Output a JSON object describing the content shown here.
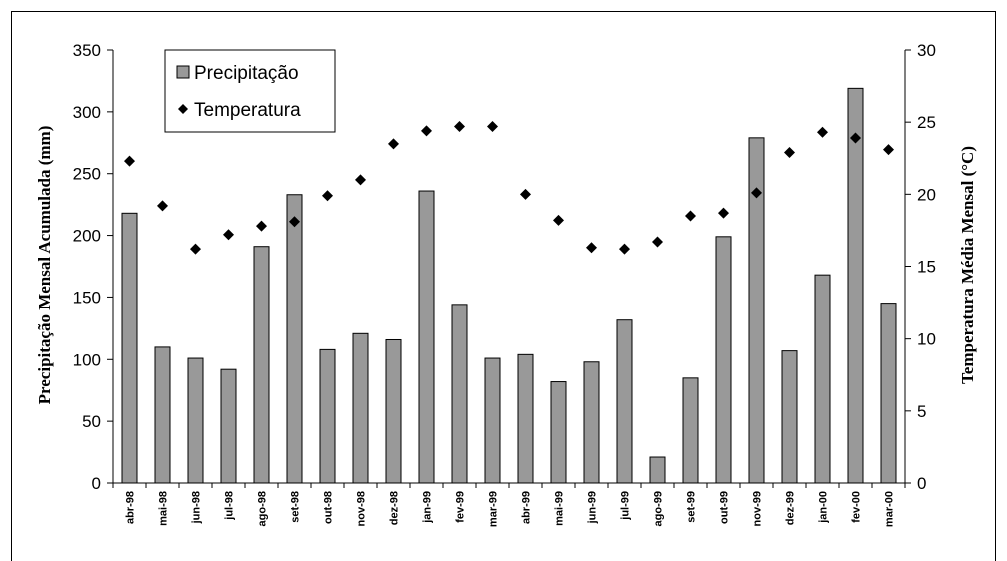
{
  "chart_data": {
    "type": "bar",
    "categories": [
      "abr-98",
      "mai-98",
      "jun-98",
      "jul-98",
      "ago-98",
      "set-98",
      "out-98",
      "nov-98",
      "dez-98",
      "jan-99",
      "fev-99",
      "mar-99",
      "abr-99",
      "mai-99",
      "jun-99",
      "jul-99",
      "ago-99",
      "set-99",
      "out-99",
      "nov-99",
      "dez-99",
      "jan-00",
      "fev-00",
      "mar-00"
    ],
    "series": [
      {
        "name": "Precipitação",
        "type": "bar",
        "axis": "left",
        "color": "#999999",
        "values": [
          218,
          110,
          101,
          92,
          191,
          233,
          108,
          121,
          116,
          236,
          144,
          101,
          104,
          82,
          98,
          132,
          21,
          85,
          199,
          279,
          107,
          168,
          319,
          145
        ]
      },
      {
        "name": "Temperatura",
        "type": "scatter",
        "axis": "right",
        "marker": "diamond",
        "color": "#000000",
        "values": [
          22.3,
          19.2,
          16.2,
          17.2,
          17.8,
          18.1,
          19.9,
          21.0,
          23.5,
          24.4,
          24.7,
          24.7,
          20.0,
          18.2,
          16.3,
          16.2,
          16.7,
          18.5,
          18.7,
          20.1,
          22.9,
          24.3,
          23.9,
          23.1
        ]
      }
    ],
    "ylabel": "Precipitação Mensal Acumulada (mm)",
    "ylabel_right": "Temperatura Média Mensal (°C)",
    "ylim": [
      0,
      350
    ],
    "ylim_right": [
      0,
      30
    ],
    "yticks": [
      "0",
      "50",
      "100",
      "150",
      "200",
      "250",
      "300",
      "350"
    ],
    "yticks_right": [
      "0",
      "5",
      "10",
      "15",
      "20",
      "25",
      "30"
    ],
    "grid": false,
    "legend_position": "top-left"
  }
}
